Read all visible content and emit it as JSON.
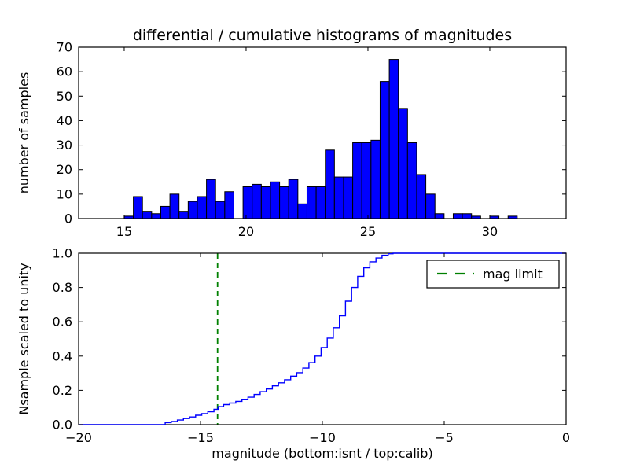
{
  "chart_data": [
    {
      "type": "bar",
      "subplot": "top",
      "title": "differential / cumulative histograms of magnitudes",
      "ylabel": "number of samples",
      "xlim": [
        13.13,
        33.13
      ],
      "ylim": [
        0,
        70
      ],
      "xticks": [
        15,
        20,
        25,
        30
      ],
      "xtick_labels": [
        "15",
        "20",
        "25",
        "30"
      ],
      "yticks": [
        0,
        10,
        20,
        30,
        40,
        50,
        60,
        70
      ],
      "ytick_labels": [
        "0",
        "10",
        "20",
        "30",
        "40",
        "50",
        "60",
        "70"
      ],
      "bin_start": 15.0,
      "bin_width": 0.375,
      "bin_counts": [
        1,
        9,
        3,
        2,
        5,
        10,
        3,
        7,
        9,
        16,
        7,
        11,
        0,
        13,
        14,
        13,
        15,
        13,
        16,
        6,
        13,
        13,
        28,
        17,
        17,
        31,
        31,
        32,
        56,
        65,
        45,
        31,
        18,
        10,
        2,
        0,
        2,
        2,
        1,
        0,
        1,
        0,
        1
      ],
      "bar_color": "#0000ff",
      "bar_edge_color": "#000000",
      "grid": false
    },
    {
      "type": "line",
      "subplot": "bottom",
      "line_style": "step-cumulative",
      "ylabel": "Nsample scaled to unity",
      "xlabel": "magnitude (bottom:isnt / top:calib)",
      "xlim": [
        -20,
        0
      ],
      "ylim": [
        0,
        1.0
      ],
      "xticks": [
        -20,
        -15,
        -10,
        -5,
        0
      ],
      "xtick_labels": [
        "−20",
        "−15",
        "−10",
        "−5",
        "0"
      ],
      "yticks": [
        0,
        0.2,
        0.4,
        0.6,
        0.8,
        1.0
      ],
      "ytick_labels": [
        "0.0",
        "0.2",
        "0.4",
        "0.6",
        "0.8",
        "1.0"
      ],
      "line_color": "#0000ff",
      "curve_start": [
        -20,
        0
      ],
      "curve_end_x": 0,
      "steps": [
        [
          -16.45,
          0.012
        ],
        [
          -16.2,
          0.019
        ],
        [
          -15.95,
          0.027
        ],
        [
          -15.7,
          0.036
        ],
        [
          -15.45,
          0.045
        ],
        [
          -15.2,
          0.055
        ],
        [
          -14.95,
          0.064
        ],
        [
          -14.7,
          0.075
        ],
        [
          -14.45,
          0.09
        ],
        [
          -14.28,
          0.105
        ],
        [
          -14.05,
          0.117
        ],
        [
          -13.8,
          0.126
        ],
        [
          -13.55,
          0.136
        ],
        [
          -13.3,
          0.148
        ],
        [
          -13.05,
          0.16
        ],
        [
          -12.8,
          0.176
        ],
        [
          -12.55,
          0.192
        ],
        [
          -12.3,
          0.208
        ],
        [
          -12.05,
          0.226
        ],
        [
          -11.8,
          0.244
        ],
        [
          -11.55,
          0.262
        ],
        [
          -11.3,
          0.283
        ],
        [
          -11.05,
          0.303
        ],
        [
          -10.8,
          0.33
        ],
        [
          -10.55,
          0.362
        ],
        [
          -10.3,
          0.4
        ],
        [
          -10.05,
          0.45
        ],
        [
          -9.8,
          0.505
        ],
        [
          -9.55,
          0.565
        ],
        [
          -9.3,
          0.635
        ],
        [
          -9.05,
          0.72
        ],
        [
          -8.8,
          0.8
        ],
        [
          -8.55,
          0.865
        ],
        [
          -8.3,
          0.915
        ],
        [
          -8.05,
          0.95
        ],
        [
          -7.8,
          0.972
        ],
        [
          -7.55,
          0.988
        ],
        [
          -7.3,
          0.997
        ],
        [
          -7.1,
          1.0
        ]
      ],
      "mag_limit_line": {
        "x": -14.3,
        "color": "#008000",
        "style": "dashed"
      },
      "legend": {
        "location": "upper right",
        "entries": [
          {
            "label": "mag limit",
            "color": "#008000",
            "style": "dashed"
          }
        ]
      },
      "grid": false
    }
  ]
}
